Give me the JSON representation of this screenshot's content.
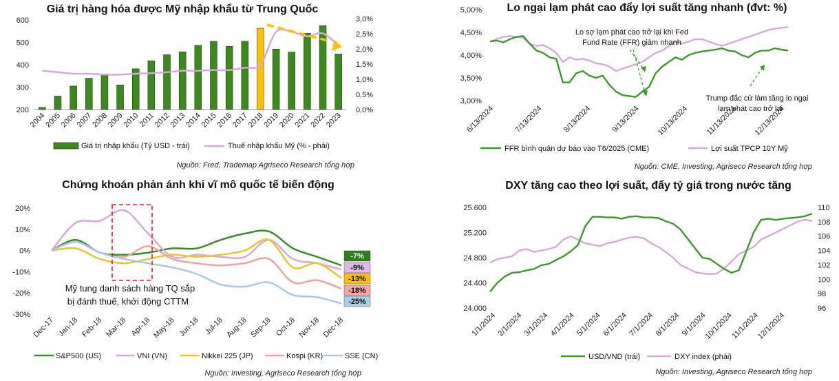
{
  "charts": [
    {
      "id": "c1",
      "type": "bar+line",
      "title": "Giá trị hàng hóa được Mỹ nhập khẩu từ Trung Quốc",
      "categories": [
        "2004",
        "2005",
        "2006",
        "2007",
        "2008",
        "2009",
        "2010",
        "2011",
        "2012",
        "2013",
        "2014",
        "2015",
        "2016",
        "2017",
        "2018",
        "2019",
        "2020",
        "2021",
        "2022",
        "2023"
      ],
      "bar_series": {
        "name": "Giá trị nhập khẩu (Tỷ USD - trái)",
        "values": [
          210,
          260,
          305,
          340,
          355,
          310,
          382,
          418,
          445,
          458,
          487,
          505,
          482,
          505,
          563,
          470,
          457,
          541,
          575,
          448
        ],
        "color": "#3a8a1c",
        "highlight_index": 14,
        "highlight_color": "#ffc000"
      },
      "line_series": {
        "name": "Thuế nhập khẩu Mỹ (% - phải)",
        "values": [
          1.3,
          1.25,
          1.2,
          1.2,
          1.17,
          1.17,
          1.2,
          1.22,
          1.25,
          1.3,
          1.3,
          1.32,
          1.32,
          1.4,
          1.5,
          2.6,
          2.6,
          2.45,
          2.55,
          2.15
        ],
        "color": "#d8a8dc"
      },
      "y_left": {
        "min": 200,
        "max": 600,
        "ticks": [
          "200",
          "300",
          "400",
          "500",
          "600"
        ]
      },
      "y_right": {
        "min": 0,
        "max": 3.0,
        "ticks": [
          "0,0%",
          "0,5%",
          "1,0%",
          "1,5%",
          "2,0%",
          "2,5%",
          "3,0%"
        ]
      },
      "source": "Nguồn: Fred, Trademap Agriseco Research tổng hợp"
    },
    {
      "id": "c2",
      "type": "line",
      "title": "Lo ngại lạm phát cao đẩy lợi suất tăng nhanh (đvt: %)",
      "x_ticks": [
        "6/13/2024",
        "7/13/2024",
        "8/13/2024",
        "9/13/2024",
        "10/13/2024",
        "11/13/2024",
        "12/13/2024"
      ],
      "y": {
        "min": 3.0,
        "max": 5.0,
        "ticks": [
          "3,00%",
          "3,50%",
          "4,00%",
          "4,50%",
          "5,00%"
        ]
      },
      "series": [
        {
          "name": "FFR bình quân dự báo vào T6/2025 (CME)",
          "color": "#3a9a2a",
          "values": [
            4.3,
            4.32,
            4.28,
            4.35,
            4.4,
            4.42,
            4.25,
            4.1,
            4.05,
            3.95,
            3.92,
            3.4,
            3.4,
            3.6,
            3.65,
            3.55,
            3.5,
            3.55,
            3.35,
            3.2,
            3.12,
            3.1,
            3.08,
            3.2,
            3.3,
            3.6,
            3.75,
            3.85,
            3.95,
            3.9,
            4.0,
            4.05,
            4.08,
            4.1,
            4.12,
            4.15,
            4.1,
            4.08,
            4.0,
            3.95,
            4.05,
            4.1,
            4.1,
            4.15,
            4.12,
            4.1
          ]
        },
        {
          "name": "Lợi suất TPCP 10Y Mỹ",
          "color": "#d8a8dc",
          "values": [
            4.3,
            4.35,
            4.4,
            4.42,
            4.4,
            4.38,
            4.25,
            4.2,
            4.22,
            4.15,
            4.05,
            3.85,
            3.95,
            3.9,
            3.92,
            3.88,
            3.82,
            3.8,
            3.75,
            3.65,
            3.7,
            3.75,
            3.8,
            3.85,
            3.95,
            4.05,
            4.1,
            4.2,
            4.3,
            4.25,
            4.3,
            4.35,
            4.35,
            4.3,
            4.25,
            4.2,
            4.25,
            4.3,
            4.35,
            4.4,
            4.45,
            4.5,
            4.55,
            4.58,
            4.6,
            4.62
          ]
        }
      ],
      "annotations": [
        "Lo sợ lạm phát cao trở lại khi Fed",
        "Fund Rate (FFR) giảm nhanh",
        "Trump đắc cử làm tăng lo ngại",
        "lạm phát cao trở lại"
      ],
      "source": "Nguồn: CME, Investing, Agriseco Research tổng hợp"
    },
    {
      "id": "c3",
      "type": "line",
      "title": "Chứng khoán phản ánh khi vĩ mô quốc tế biến động",
      "x_ticks": [
        "Dec-17",
        "Jan-18",
        "Feb-18",
        "Mar-18",
        "Apr-18",
        "May-18",
        "Jun-18",
        "Jul-18",
        "Aug-18",
        "Sep-18",
        "Oct-18",
        "Nov-18",
        "Dec-18"
      ],
      "y": {
        "min": -30,
        "max": 20,
        "ticks": [
          "-30%",
          "-20%",
          "-10%",
          "0%",
          "10%",
          "20%"
        ]
      },
      "series": [
        {
          "name": "S&P500 (US)",
          "color": "#3a8a2a",
          "values": [
            0,
            5,
            -1,
            -2,
            -1,
            1,
            1,
            5,
            8,
            9,
            1,
            -3,
            -7
          ],
          "end_label": "-7%",
          "label_bg": "#2e7d1e",
          "label_fg": "#ffffff"
        },
        {
          "name": "VNI (VN)",
          "color": "#d8a8dc",
          "values": [
            0,
            13,
            14,
            19,
            8,
            -3,
            -2,
            -3,
            -3,
            5,
            -4,
            -6,
            -9
          ],
          "end_label": "-9%",
          "label_bg": "#e0b8e6",
          "label_fg": "#111111"
        },
        {
          "name": "Nikkei 225 (JP)",
          "color": "#f2c12e",
          "values": [
            0,
            1,
            -4,
            -6,
            -4,
            -2,
            -3,
            -2,
            0,
            5,
            -8,
            -6,
            -13
          ],
          "end_label": "-13%",
          "label_bg": "#ffc000",
          "label_fg": "#111111"
        },
        {
          "name": "Kospi (KR)",
          "color": "#f2a0a0",
          "values": [
            0,
            4,
            -1,
            -3,
            2,
            -4,
            -6,
            -7,
            -6,
            -4,
            -15,
            -14,
            -18
          ],
          "end_label": "-18%",
          "label_bg": "#f4a8a8",
          "label_fg": "#111111"
        },
        {
          "name": "SSE (CN)",
          "color": "#a8c8ea",
          "values": [
            0,
            4,
            -1,
            -4,
            -6,
            -8,
            -11,
            -16,
            -17,
            -15,
            -21,
            -22,
            -25
          ],
          "end_label": "-25%",
          "label_bg": "#a8cfee",
          "label_fg": "#111111"
        }
      ],
      "annotation": [
        "Mỹ tung danh sách hàng TQ sắp",
        "bị đánh thuế, khởi động CTTM"
      ],
      "source": "Nguồn: Investing, Agriseco Research tổng hợp"
    },
    {
      "id": "c4",
      "type": "line",
      "title": "DXY tăng cao theo lợi suất, đẩy tỷ giá trong nước tăng",
      "x_ticks": [
        "1/1/2024",
        "2/1/2024",
        "3/1/2024",
        "4/1/2024",
        "5/1/2024",
        "6/1/2024",
        "7/1/2024",
        "8/1/2024",
        "9/1/2024",
        "10/1/2024",
        "11/1/2024",
        "12/1/2024"
      ],
      "y_left": {
        "min": 24000,
        "max": 25600,
        "ticks": [
          "24.000",
          "24.400",
          "24.800",
          "25.200",
          "25.600"
        ]
      },
      "y_right": {
        "min": 96,
        "max": 110,
        "ticks": [
          "96",
          "98",
          "100",
          "102",
          "104",
          "106",
          "108",
          "110"
        ]
      },
      "series": [
        {
          "name": "USD/VND (trái)",
          "axis": "left",
          "color": "#3a9a2a",
          "values": [
            24260,
            24400,
            24500,
            24560,
            24570,
            24600,
            24620,
            24680,
            24700,
            24760,
            24820,
            24900,
            25000,
            25300,
            25450,
            25450,
            25440,
            25440,
            25420,
            25450,
            25460,
            25440,
            25440,
            25430,
            25380,
            25340,
            25250,
            25100,
            24950,
            24800,
            24780,
            24700,
            24620,
            24560,
            24600,
            24900,
            25200,
            25400,
            25420,
            25400,
            25420,
            25430,
            25440,
            25460,
            25500
          ]
        },
        {
          "name": "DXY index (phải)",
          "axis": "right",
          "color": "#d8a8dc",
          "values": [
            102.3,
            102.8,
            103,
            103.2,
            104,
            104.2,
            103.8,
            104,
            104.2,
            104.5,
            105.5,
            106,
            105.5,
            105,
            104.8,
            104.6,
            105,
            105.2,
            105.5,
            105.8,
            105.9,
            105.7,
            105,
            104.5,
            103.8,
            103,
            102,
            101.5,
            101,
            100.8,
            100.7,
            100.8,
            101.5,
            102.5,
            103.5,
            104,
            104.5,
            105.5,
            106,
            106.5,
            107,
            107.5,
            108,
            108.3,
            108.1
          ]
        }
      ],
      "source": "Nguồn: Investing, Agriseco Research tổng hợp"
    }
  ]
}
